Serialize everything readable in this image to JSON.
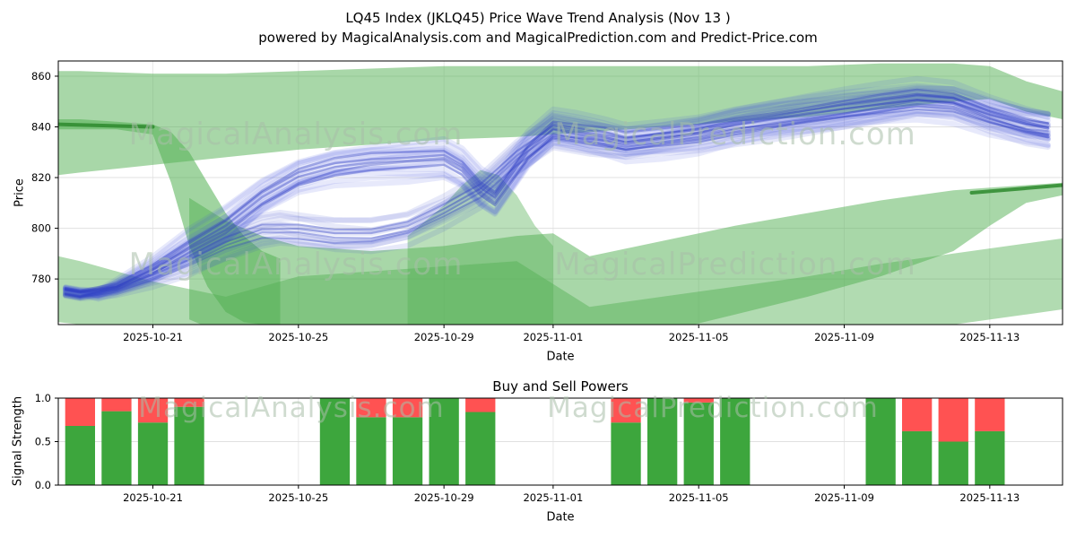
{
  "title_line1": "LQ45 Index (JKLQ45) Price Wave Trend Analysis (Nov 13 )",
  "title_line2": "powered by MagicalAnalysis.com and MagicalPrediction.com and Predict-Price.com",
  "watermarks": {
    "analysis": "MagicalAnalysis.com",
    "prediction": "MagicalPrediction.com"
  },
  "colors": {
    "band_green": "#52b052",
    "accent_green": "#2d8a2d",
    "wave_blue": "#4152d9",
    "bar_green": "#3da63d",
    "bar_red": "#ff5252",
    "grid": "#e0e0e0",
    "axis": "#000000"
  },
  "chart_data": [
    {
      "type": "area",
      "title": "",
      "xlabel": "Date",
      "ylabel": "Price",
      "xlim": [
        -0.6,
        27
      ],
      "ylim": [
        762,
        866
      ],
      "grid": true,
      "yticks": [
        {
          "v": 780,
          "label": "780"
        },
        {
          "v": 800,
          "label": "800"
        },
        {
          "v": 820,
          "label": "820"
        },
        {
          "v": 840,
          "label": "840"
        },
        {
          "v": 860,
          "label": "860"
        }
      ],
      "xticks": [
        {
          "v": 2,
          "label": "2025-10-21"
        },
        {
          "v": 6,
          "label": "2025-10-25"
        },
        {
          "v": 10,
          "label": "2025-10-29"
        },
        {
          "v": 13,
          "label": "2025-11-01"
        },
        {
          "v": 17,
          "label": "2025-11-05"
        },
        {
          "v": 21,
          "label": "2025-11-09"
        },
        {
          "v": 25,
          "label": "2025-11-13"
        }
      ],
      "bands": [
        {
          "name": "upper-trend-band",
          "x": [
            -0.6,
            0,
            2,
            4,
            6,
            8,
            10,
            12,
            14,
            16,
            18,
            20,
            22,
            24,
            25,
            26,
            27
          ],
          "upper": [
            862,
            862,
            861,
            861,
            862,
            863,
            864,
            864,
            864,
            864,
            864,
            864,
            865,
            865,
            864,
            858,
            854
          ],
          "lower": [
            821,
            822,
            825,
            828,
            831,
            833,
            835,
            836,
            838,
            840,
            842,
            844,
            847,
            850,
            851,
            846,
            843
          ],
          "opacity": 0.5
        },
        {
          "name": "left-fan-band",
          "x": [
            -0.6,
            0,
            1,
            2,
            2.5,
            3,
            3.5,
            4,
            4.5,
            5,
            5.5
          ],
          "upper": [
            843,
            843,
            842,
            841,
            838,
            830,
            818,
            806,
            797,
            791,
            788
          ],
          "lower": [
            839,
            839,
            839,
            837,
            818,
            793,
            777,
            767,
            763,
            762,
            762
          ],
          "opacity": 0.55
        },
        {
          "name": "diagonal-band",
          "x": [
            3,
            4,
            5,
            6,
            8,
            10,
            11,
            12,
            13,
            14,
            16,
            18,
            20,
            22,
            24,
            25,
            26,
            27
          ],
          "upper": [
            812,
            803,
            797,
            793,
            791,
            793,
            795,
            797,
            798,
            789,
            795,
            801,
            806,
            811,
            815,
            816,
            817,
            818
          ],
          "lower": [
            764,
            758,
            756,
            755,
            754,
            755,
            756,
            757,
            759,
            753,
            759,
            766,
            773,
            781,
            791,
            801,
            810,
            813
          ],
          "opacity": 0.5
        },
        {
          "name": "lower-band",
          "x": [
            -0.6,
            0,
            2,
            4,
            6,
            8,
            10,
            12,
            14,
            16,
            18,
            20,
            22,
            24,
            26,
            27
          ],
          "upper": [
            789,
            787,
            779,
            773,
            781,
            783,
            785,
            787,
            769,
            773,
            777,
            781,
            786,
            790,
            794,
            796
          ],
          "lower": [
            763,
            762,
            758,
            750,
            748,
            747,
            746,
            745,
            744,
            746,
            750,
            754,
            758,
            762,
            766,
            768
          ],
          "opacity": 0.45
        },
        {
          "name": "hump-band",
          "x": [
            9,
            10,
            10.5,
            11,
            11.5,
            12,
            12.5,
            13
          ],
          "upper": [
            797,
            809,
            817,
            823,
            821,
            813,
            801,
            793
          ],
          "lower": [
            755,
            757,
            759,
            761,
            761,
            759,
            757,
            753
          ],
          "opacity": 0.4
        }
      ],
      "accent_lines": [
        {
          "x": [
            -0.6,
            2
          ],
          "y": [
            841,
            840
          ]
        },
        {
          "x": [
            24.5,
            27
          ],
          "y": [
            814,
            817
          ]
        }
      ],
      "wave_bundles": [
        {
          "lines": 13,
          "spread": 7,
          "width": 6,
          "opacity": 0.13,
          "color": "#4656dd",
          "path": [
            [
              -0.4,
              776
            ],
            [
              0,
              775
            ],
            [
              0.5,
              774
            ],
            [
              1,
              777
            ],
            [
              2,
              784
            ],
            [
              3,
              793
            ],
            [
              4,
              801
            ],
            [
              5,
              812
            ],
            [
              6,
              820
            ],
            [
              7,
              824
            ],
            [
              8,
              826
            ],
            [
              9,
              827
            ],
            [
              10,
              828
            ],
            [
              10.5,
              824
            ],
            [
              11,
              816
            ],
            [
              11.4,
              812
            ],
            [
              11.8,
              820
            ],
            [
              12.3,
              830
            ],
            [
              13,
              839
            ],
            [
              13.6,
              838
            ],
            [
              14.4,
              836
            ],
            [
              15,
              834
            ],
            [
              16,
              836
            ],
            [
              17,
              838
            ],
            [
              18,
              841
            ],
            [
              19,
              843
            ],
            [
              20,
              845
            ],
            [
              21,
              847
            ],
            [
              22,
              849
            ],
            [
              23,
              851
            ],
            [
              24,
              850
            ],
            [
              25,
              845
            ],
            [
              26,
              841
            ],
            [
              26.6,
              839
            ]
          ]
        },
        {
          "lines": 11,
          "spread": 6,
          "width": 6,
          "opacity": 0.12,
          "color": "#3b4ad0",
          "path": [
            [
              -0.4,
              774
            ],
            [
              0,
              773
            ],
            [
              1,
              776
            ],
            [
              2,
              781
            ],
            [
              3,
              787
            ],
            [
              4,
              794
            ],
            [
              5,
              799
            ],
            [
              5.5,
              800
            ],
            [
              6,
              799
            ],
            [
              7,
              797
            ],
            [
              8,
              797
            ],
            [
              9,
              800
            ],
            [
              10,
              807
            ],
            [
              11,
              815
            ],
            [
              12,
              828
            ],
            [
              13,
              838
            ],
            [
              14,
              835
            ],
            [
              15,
              833
            ],
            [
              16,
              835
            ],
            [
              17,
              837
            ],
            [
              18,
              840
            ],
            [
              19,
              842
            ],
            [
              20,
              844
            ],
            [
              21,
              846
            ],
            [
              22,
              848
            ],
            [
              23,
              850
            ],
            [
              24,
              849
            ],
            [
              25,
              844
            ],
            [
              26,
              840
            ],
            [
              26.6,
              839
            ]
          ]
        },
        {
          "lines": 5,
          "spread": 3,
          "width": 2.5,
          "opacity": 0.4,
          "color": "#2f3fc4",
          "path": [
            [
              -0.4,
              776
            ],
            [
              0,
              775
            ],
            [
              1,
              777
            ],
            [
              2,
              784
            ],
            [
              3,
              793
            ],
            [
              4,
              801
            ],
            [
              5,
              812
            ],
            [
              6,
              820
            ],
            [
              7,
              824
            ],
            [
              8,
              826
            ],
            [
              9,
              827
            ],
            [
              10,
              828
            ],
            [
              10.5,
              824
            ],
            [
              11,
              816
            ],
            [
              11.4,
              812
            ],
            [
              11.8,
              820
            ],
            [
              12.3,
              830
            ],
            [
              13,
              839
            ],
            [
              14.4,
              836
            ],
            [
              15,
              834
            ],
            [
              16,
              836
            ],
            [
              17,
              838
            ],
            [
              18,
              841
            ],
            [
              19,
              843
            ],
            [
              20,
              845
            ],
            [
              21,
              847
            ],
            [
              22,
              849
            ],
            [
              23,
              851
            ],
            [
              24,
              850
            ],
            [
              25,
              845
            ],
            [
              26,
              841
            ],
            [
              26.6,
              839
            ]
          ]
        },
        {
          "lines": 4,
          "spread": 2.5,
          "width": 2,
          "opacity": 0.35,
          "color": "#2f3fc4",
          "path": [
            [
              -0.4,
              774
            ],
            [
              0,
              773
            ],
            [
              1,
              776
            ],
            [
              2,
              781
            ],
            [
              3,
              787
            ],
            [
              4,
              794
            ],
            [
              5,
              799
            ],
            [
              6,
              799
            ],
            [
              7,
              797
            ],
            [
              8,
              797
            ],
            [
              9,
              800
            ],
            [
              10,
              807
            ],
            [
              11,
              815
            ],
            [
              12,
              828
            ],
            [
              13,
              838
            ],
            [
              14,
              835
            ],
            [
              15,
              833
            ],
            [
              16,
              835
            ],
            [
              17,
              837
            ],
            [
              18,
              840
            ],
            [
              19,
              842
            ],
            [
              20,
              844
            ],
            [
              21,
              846
            ],
            [
              22,
              848
            ],
            [
              23,
              850
            ],
            [
              24,
              849
            ],
            [
              25,
              844
            ],
            [
              26,
              840
            ],
            [
              26.6,
              839
            ]
          ]
        }
      ]
    },
    {
      "type": "bar",
      "title": "Buy and Sell Powers",
      "xlabel": "Date",
      "ylabel": "Signal Strength",
      "xlim": [
        -0.6,
        27
      ],
      "ylim": [
        0,
        1
      ],
      "grid": true,
      "bar_width_days": 0.82,
      "yticks": [
        {
          "v": 0,
          "label": "0.0"
        },
        {
          "v": 0.5,
          "label": "0.5"
        },
        {
          "v": 1,
          "label": "1.0"
        }
      ],
      "xticks": [
        {
          "v": 2,
          "label": "2025-10-21"
        },
        {
          "v": 6,
          "label": "2025-10-25"
        },
        {
          "v": 10,
          "label": "2025-10-29"
        },
        {
          "v": 13,
          "label": "2025-11-01"
        },
        {
          "v": 17,
          "label": "2025-11-05"
        },
        {
          "v": 21,
          "label": "2025-11-09"
        },
        {
          "v": 25,
          "label": "2025-11-13"
        }
      ],
      "bars": [
        {
          "day": 0,
          "green": 0.68,
          "red": 0.32
        },
        {
          "day": 1,
          "green": 0.85,
          "red": 0.15
        },
        {
          "day": 2,
          "green": 0.72,
          "red": 0.28
        },
        {
          "day": 3,
          "green": 0.9,
          "red": 0.1
        },
        {
          "day": 7,
          "green": 1.0,
          "red": 0.0
        },
        {
          "day": 8,
          "green": 0.78,
          "red": 0.22
        },
        {
          "day": 9,
          "green": 0.78,
          "red": 0.22
        },
        {
          "day": 10,
          "green": 1.0,
          "red": 0.0
        },
        {
          "day": 11,
          "green": 0.84,
          "red": 0.16
        },
        {
          "day": 15,
          "green": 0.72,
          "red": 0.28
        },
        {
          "day": 16,
          "green": 1.0,
          "red": 0.0
        },
        {
          "day": 17,
          "green": 0.95,
          "red": 0.05
        },
        {
          "day": 18,
          "green": 1.0,
          "red": 0.0
        },
        {
          "day": 22,
          "green": 1.0,
          "red": 0.0
        },
        {
          "day": 23,
          "green": 0.62,
          "red": 0.38
        },
        {
          "day": 24,
          "green": 0.5,
          "red": 0.5
        },
        {
          "day": 25,
          "green": 0.62,
          "red": 0.38
        }
      ]
    }
  ]
}
